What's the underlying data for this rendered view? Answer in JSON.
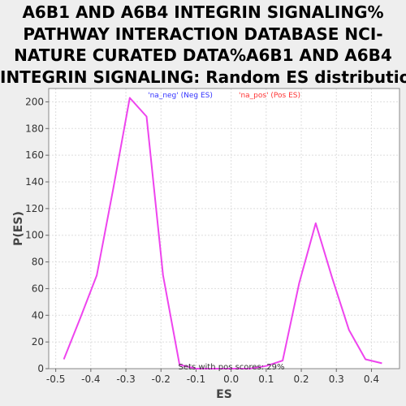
{
  "title_lines": [
    "A6B1 AND A6B4 INTEGRIN SIGNALING%",
    "PATHWAY INTERACTION DATABASE NCI-",
    "NATURE CURATED DATA%A6B1 AND A6B4",
    "INTEGRIN SIGNALING: Random ES distribution"
  ],
  "chart_data": {
    "type": "line",
    "xlabel": "ES",
    "ylabel": "P(ES)",
    "xlim": [
      -0.52,
      0.48
    ],
    "ylim": [
      0,
      210
    ],
    "x_ticks": [
      -0.5,
      -0.4,
      -0.3,
      -0.2,
      -0.1,
      0.0,
      0.1,
      0.2,
      0.3,
      0.4
    ],
    "x_tick_labels": [
      "-0.5",
      "-0.4",
      "-0.3",
      "-0.2",
      "-0.1",
      "0.0",
      "0.1",
      "0.2",
      "0.3",
      "0.4"
    ],
    "y_ticks": [
      0,
      20,
      40,
      60,
      80,
      100,
      120,
      140,
      160,
      180,
      200
    ],
    "y_tick_labels": [
      "0",
      "20",
      "40",
      "60",
      "80",
      "100",
      "120",
      "140",
      "160",
      "180",
      "200"
    ],
    "grid": true,
    "series": [
      {
        "color": "#ee44ee",
        "x": [
          -0.477,
          -0.43,
          -0.383,
          -0.336,
          -0.289,
          -0.241,
          -0.194,
          -0.147,
          -0.1,
          -0.053,
          -0.006,
          0.053,
          0.1,
          0.147,
          0.194,
          0.241,
          0.288,
          0.336,
          0.383,
          0.43
        ],
        "y": [
          7,
          38,
          70,
          135,
          203,
          189,
          70,
          3,
          0,
          0,
          0,
          0,
          2,
          6,
          64,
          109,
          68,
          29,
          7,
          4
        ]
      }
    ],
    "legend": [
      {
        "label": "'na_neg' (Neg ES)",
        "color": "#3333ff"
      },
      {
        "label": "'na_pos' (Pos ES)",
        "color": "#ff3333"
      }
    ],
    "annotation": "Sets with pos scores: 29%"
  }
}
